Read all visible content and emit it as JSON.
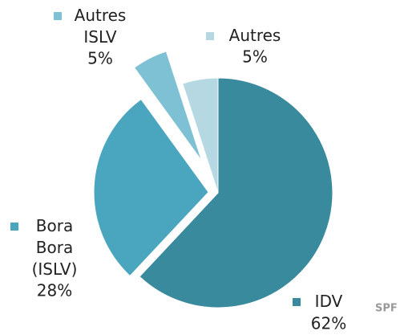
{
  "chart_data": {
    "type": "pie",
    "categories": [
      "IDV",
      "Bora Bora (ISLV)",
      "Autres ISLV",
      "Autres"
    ],
    "values": [
      62,
      28,
      5,
      5
    ],
    "value_labels": [
      "62%",
      "28%",
      "5%",
      "5%"
    ],
    "colors": [
      "#3a8a9e",
      "#4aa5bf",
      "#7ec0d4",
      "#b5d8e3"
    ],
    "annotation": "SPF"
  }
}
